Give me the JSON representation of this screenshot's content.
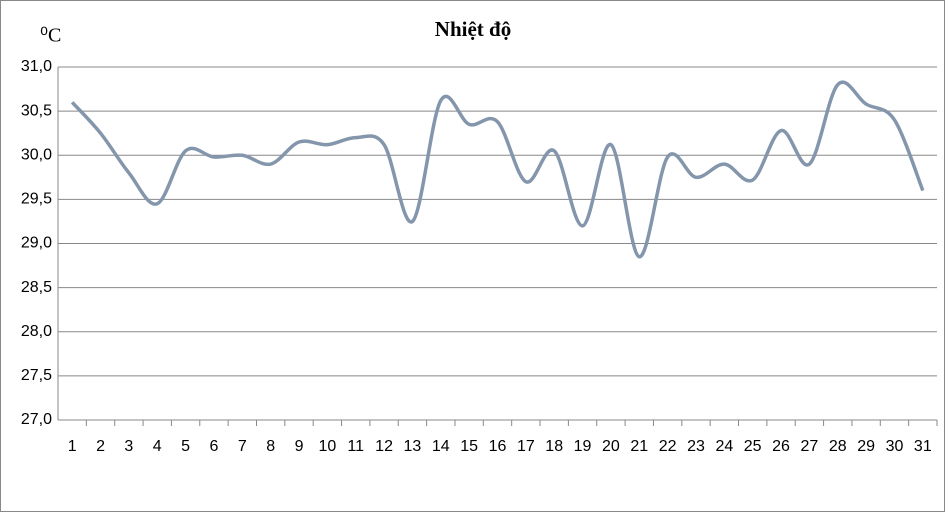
{
  "chart_data": {
    "type": "line",
    "title": "Nhiệt độ",
    "y_label": "⁰C",
    "categories": [
      "1",
      "2",
      "3",
      "4",
      "5",
      "6",
      "7",
      "8",
      "9",
      "10",
      "11",
      "12",
      "13",
      "14",
      "15",
      "16",
      "17",
      "18",
      "19",
      "20",
      "21",
      "22",
      "23",
      "24",
      "25",
      "26",
      "27",
      "28",
      "29",
      "30",
      "31"
    ],
    "series": [
      {
        "name": "Nhiệt độ",
        "color": "#8496ac",
        "values": [
          30.6,
          30.25,
          29.8,
          29.45,
          30.05,
          29.98,
          30.0,
          29.9,
          30.15,
          30.12,
          30.2,
          30.12,
          29.25,
          30.62,
          30.35,
          30.38,
          29.7,
          30.05,
          29.2,
          30.12,
          28.85,
          29.98,
          29.75,
          29.9,
          29.72,
          30.28,
          29.9,
          30.8,
          30.58,
          30.4,
          29.6
        ]
      }
    ],
    "ylim": [
      27.0,
      31.0
    ],
    "yticks": [
      {
        "value": 27.0,
        "label": "27,0"
      },
      {
        "value": 27.5,
        "label": "27,5"
      },
      {
        "value": 28.0,
        "label": "28,0"
      },
      {
        "value": 28.5,
        "label": "28,5"
      },
      {
        "value": 29.0,
        "label": "29,0"
      },
      {
        "value": 29.5,
        "label": "29,5"
      },
      {
        "value": 30.0,
        "label": "30,0"
      },
      {
        "value": 30.5,
        "label": "30,5"
      },
      {
        "value": 31.0,
        "label": "31,0"
      }
    ],
    "grid": true
  }
}
